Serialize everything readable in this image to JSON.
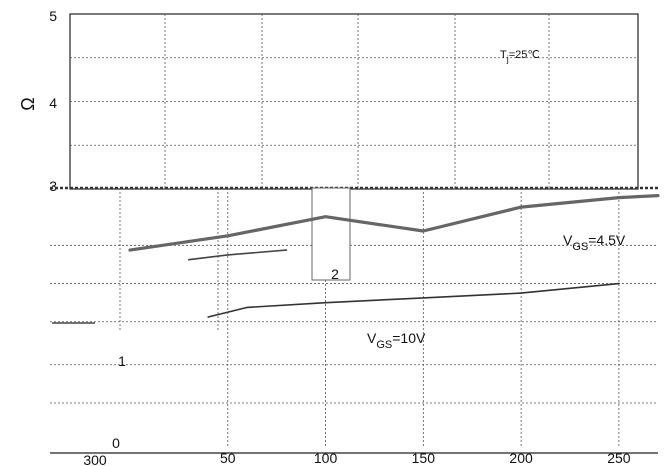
{
  "chart_data": {
    "type": "line",
    "xlabel": "",
    "ylabel": "Ω",
    "x_ticks": [
      "50",
      "100",
      "150",
      "200",
      "250"
    ],
    "x_extra_label": "300",
    "y_ticks": [
      "0",
      "1",
      "2",
      "3",
      "4",
      "5"
    ],
    "xlim": [
      0,
      270
    ],
    "ylim": [
      0,
      5
    ],
    "grid": true,
    "annotations": {
      "temperature": {
        "prefix": "T",
        "sub": "j",
        "suffix": "=25℃"
      },
      "vgs_high": {
        "prefix": "V",
        "sub": "GS",
        "suffix": "=4.5V"
      },
      "vgs_low": {
        "prefix": "V",
        "sub": "GS",
        "suffix": "=10V"
      }
    },
    "series": [
      {
        "id": "vgs-4-5v",
        "x": [
          0,
          50,
          100,
          150,
          200,
          250,
          270
        ],
        "y": [
          2.05,
          2.2,
          2.4,
          2.25,
          2.5,
          2.6,
          2.62
        ]
      },
      {
        "id": "vgs-4-5v-lower-trace",
        "x": [
          30,
          50,
          80
        ],
        "y": [
          1.95,
          2.0,
          2.05
        ]
      },
      {
        "id": "vgs-10v",
        "x": [
          40,
          60,
          100,
          150,
          200,
          250
        ],
        "y": [
          1.35,
          1.45,
          1.5,
          1.55,
          1.6,
          1.7
        ]
      }
    ]
  }
}
